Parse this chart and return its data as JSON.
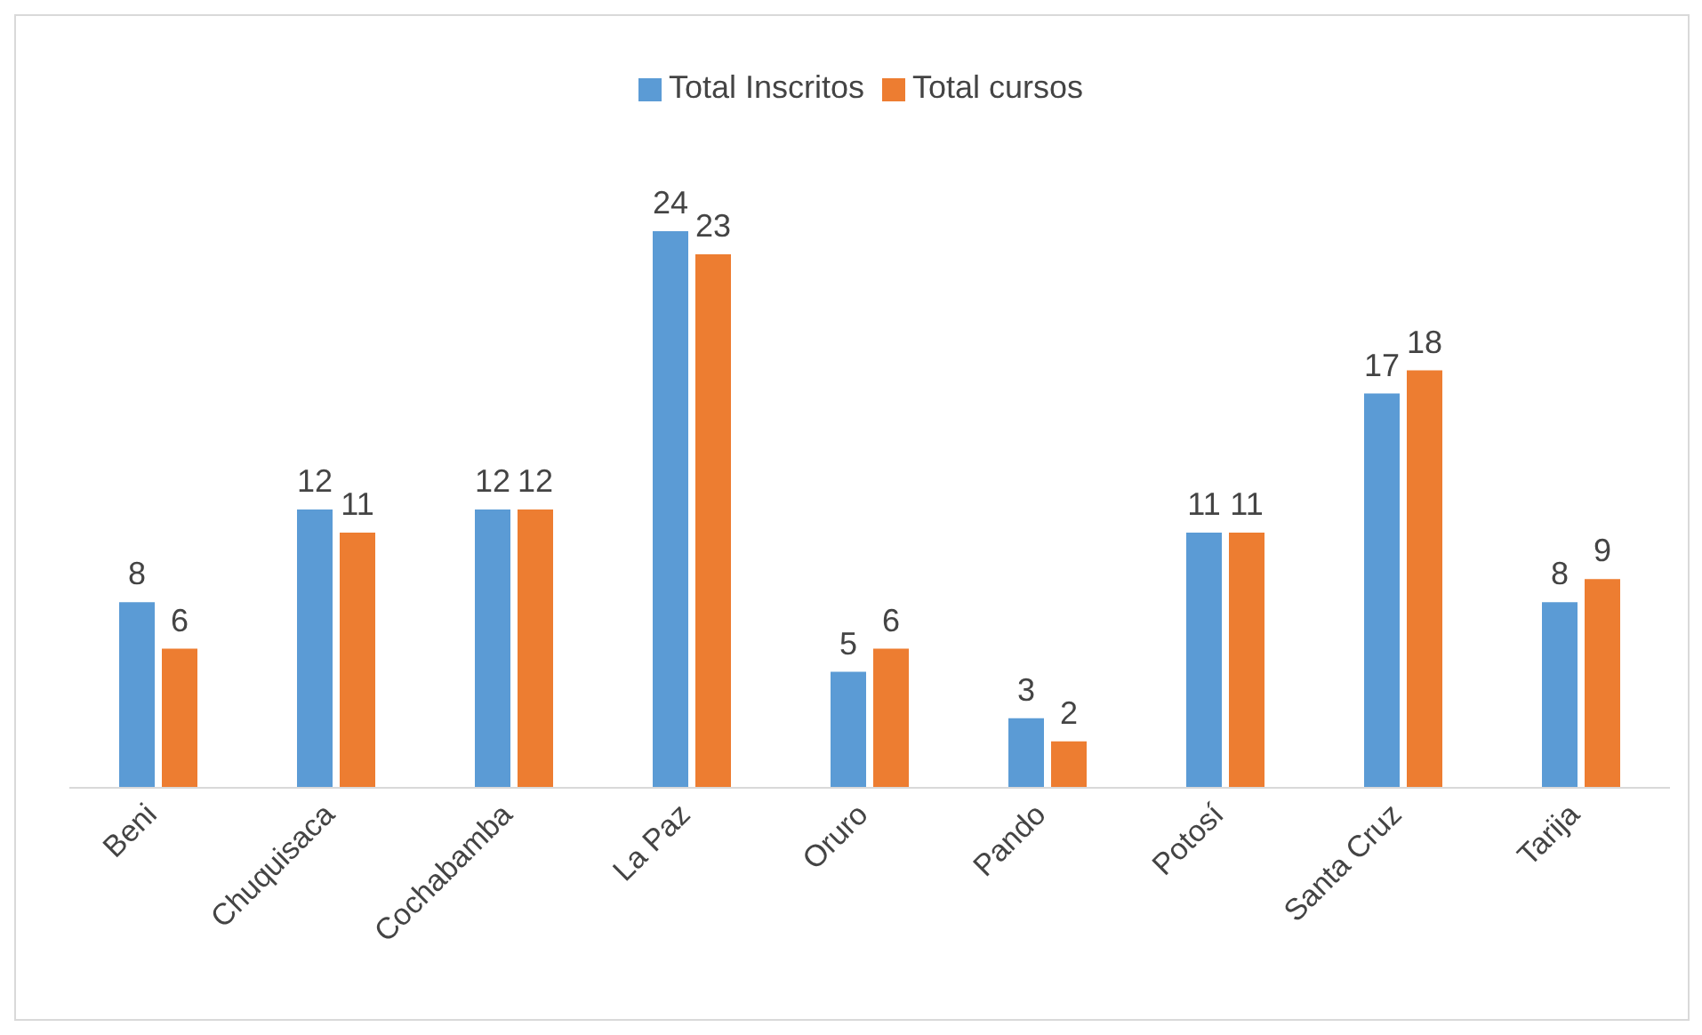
{
  "chart_data": {
    "type": "bar",
    "categories": [
      "Beni",
      "Chuquisaca",
      "Cochabamba",
      "La Paz",
      "Oruro",
      "Pando",
      "Potosí",
      "Santa Cruz",
      "Tarija"
    ],
    "series": [
      {
        "name": "Total Inscritos",
        "color": "#5b9bd5",
        "values": [
          8,
          12,
          12,
          24,
          5,
          3,
          11,
          17,
          8
        ]
      },
      {
        "name": "Total cursos",
        "color": "#ed7d31",
        "values": [
          6,
          11,
          12,
          23,
          6,
          2,
          11,
          18,
          9
        ]
      }
    ],
    "data_labels": true,
    "legend": "top",
    "grid": false
  }
}
